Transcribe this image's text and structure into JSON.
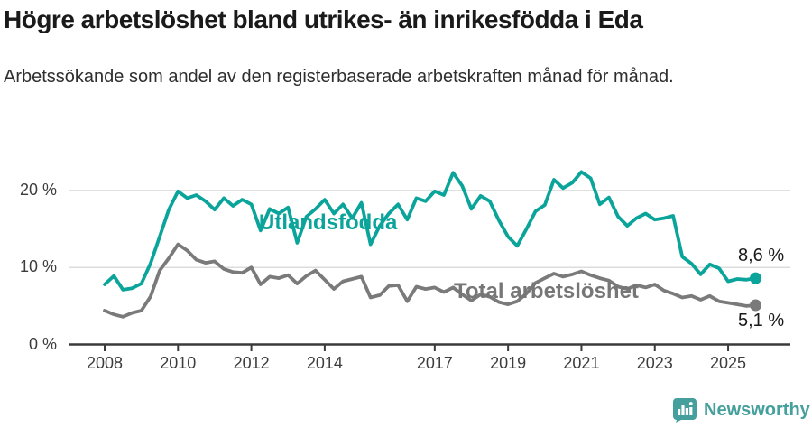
{
  "header": {
    "title": "Högre arbetslöshet bland utrikes- än inrikesfödda i Eda",
    "subtitle": "Arbetssökande som andel av den registerbaserade arbetskraften månad för månad."
  },
  "colors": {
    "foreign_line": "#0ba49b",
    "total_line": "#7a7a7a",
    "gridline": "#dcdcdc",
    "axis": "#3a3a3a",
    "logo_teal": "#459f9c",
    "end_label_text": "#1a1a1a"
  },
  "chart_data": {
    "type": "line",
    "title": "",
    "xlabel": "",
    "ylabel": "",
    "x_unit": "year (quarterly samples, 2008.0 to 2025.75)",
    "x_start": 2008.0,
    "x_step": 0.25,
    "ylim": [
      0,
      23.5
    ],
    "xlim": [
      2007.05,
      2026.65
    ],
    "grid": "horizontal",
    "y_ticks": [
      {
        "value": 0,
        "label": "0 %"
      },
      {
        "value": 10,
        "label": "10 %"
      },
      {
        "value": 20,
        "label": "20 %"
      }
    ],
    "x_ticks": [
      2008,
      2010,
      2012,
      2014,
      2017,
      2019,
      2021,
      2023,
      2025
    ],
    "series": [
      {
        "name": "Utlandsfödda",
        "color": "#0ba49b",
        "end_value_label": "8,6 %",
        "values": [
          7.8,
          8.9,
          7.1,
          7.3,
          7.9,
          10.5,
          14.0,
          17.5,
          19.9,
          19.0,
          19.4,
          18.6,
          17.5,
          19.0,
          18.0,
          18.8,
          18.2,
          14.8,
          17.6,
          17.0,
          17.8,
          13.2,
          16.6,
          17.6,
          18.8,
          17.0,
          18.2,
          16.4,
          18.4,
          13.0,
          15.4,
          17.0,
          18.2,
          16.2,
          19.0,
          18.6,
          19.9,
          19.4,
          22.3,
          20.6,
          17.6,
          19.3,
          18.6,
          16.1,
          14.0,
          12.8,
          15.0,
          17.3,
          18.1,
          21.4,
          20.3,
          21.0,
          22.4,
          21.6,
          18.2,
          19.1,
          16.6,
          15.4,
          16.4,
          17.0,
          16.2,
          16.4,
          16.7,
          11.4,
          10.5,
          9.1,
          10.4,
          9.9,
          8.2,
          8.5,
          8.4,
          8.6
        ]
      },
      {
        "name": "Total arbetslöshet",
        "color": "#7a7a7a",
        "end_value_label": "5,1 %",
        "values": [
          4.4,
          3.9,
          3.6,
          4.1,
          4.4,
          6.2,
          9.6,
          11.2,
          13.0,
          12.2,
          11.0,
          10.6,
          10.8,
          9.8,
          9.4,
          9.3,
          10.0,
          7.8,
          8.8,
          8.6,
          9.0,
          7.9,
          8.9,
          9.6,
          8.4,
          7.2,
          8.2,
          8.5,
          8.8,
          6.1,
          6.4,
          7.6,
          7.7,
          5.6,
          7.5,
          7.2,
          7.4,
          6.8,
          7.4,
          6.5,
          5.7,
          6.5,
          6.2,
          5.5,
          5.2,
          5.6,
          6.6,
          8.0,
          8.6,
          9.2,
          8.8,
          9.1,
          9.5,
          9.0,
          8.6,
          8.3,
          7.5,
          7.2,
          7.7,
          7.4,
          7.8,
          7.0,
          6.6,
          6.1,
          6.3,
          5.8,
          6.3,
          5.6,
          5.4,
          5.2,
          5.0,
          5.1
        ]
      }
    ],
    "legend_position": "labels on chart"
  },
  "footer": {
    "brand": "Newsworthy"
  }
}
